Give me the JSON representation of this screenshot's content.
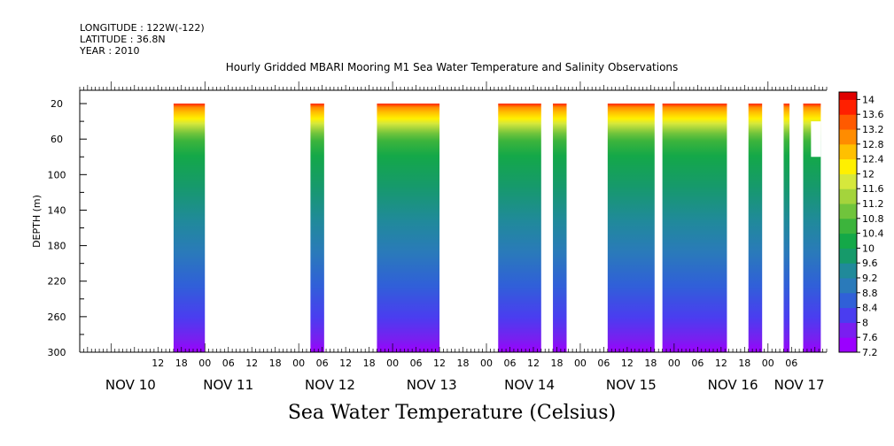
{
  "header": {
    "longitude": "LONGITUDE : 122W(-122)",
    "latitude": "LATITUDE : 36.8N",
    "year": "YEAR : 2010",
    "title": "Hourly Gridded MBARI Mooring M1 Sea Water Temperature and Salinity Observations"
  },
  "footer": {
    "variable_title": "Sea Water Temperature (Celsius)"
  },
  "chart_data": {
    "type": "heatmap",
    "title": "Hourly Gridded MBARI Mooring M1 Sea Water Temperature and Salinity Observations",
    "xlabel": "",
    "ylabel": "DEPTH (m)",
    "x_unit": "hours since 2010-11-10 00:00",
    "x_range_hours": [
      -8,
      183
    ],
    "y_range_m": [
      5,
      300
    ],
    "y_reversed": true,
    "y_ticks": [
      20,
      60,
      100,
      140,
      180,
      220,
      260,
      300
    ],
    "x_hour_ticks": [
      {
        "h": 12,
        "label": "12"
      },
      {
        "h": 18,
        "label": "18"
      },
      {
        "h": 24,
        "label": "00"
      },
      {
        "h": 30,
        "label": "06"
      },
      {
        "h": 36,
        "label": "12"
      },
      {
        "h": 42,
        "label": "18"
      },
      {
        "h": 48,
        "label": "00"
      },
      {
        "h": 54,
        "label": "06"
      },
      {
        "h": 60,
        "label": "12"
      },
      {
        "h": 66,
        "label": "18"
      },
      {
        "h": 72,
        "label": "00"
      },
      {
        "h": 78,
        "label": "06"
      },
      {
        "h": 84,
        "label": "12"
      },
      {
        "h": 90,
        "label": "18"
      },
      {
        "h": 96,
        "label": "00"
      },
      {
        "h": 102,
        "label": "06"
      },
      {
        "h": 108,
        "label": "12"
      },
      {
        "h": 114,
        "label": "18"
      },
      {
        "h": 120,
        "label": "00"
      },
      {
        "h": 126,
        "label": "06"
      },
      {
        "h": 132,
        "label": "12"
      },
      {
        "h": 138,
        "label": "18"
      },
      {
        "h": 144,
        "label": "00"
      },
      {
        "h": 150,
        "label": "06"
      },
      {
        "h": 156,
        "label": "12"
      },
      {
        "h": 162,
        "label": "18"
      },
      {
        "h": 168,
        "label": "00"
      },
      {
        "h": 174,
        "label": "06"
      }
    ],
    "date_labels": [
      {
        "h": 5,
        "label": "NOV 10"
      },
      {
        "h": 30,
        "label": "NOV 11"
      },
      {
        "h": 56,
        "label": "NOV 12"
      },
      {
        "h": 82,
        "label": "NOV 13"
      },
      {
        "h": 107,
        "label": "NOV 14"
      },
      {
        "h": 133,
        "label": "NOV 15"
      },
      {
        "h": 159,
        "label": "NOV 16"
      },
      {
        "h": 176,
        "label": "NOV 17"
      }
    ],
    "data_segments_hours": [
      [
        16,
        24
      ],
      [
        51,
        54.5
      ],
      [
        68,
        84
      ],
      [
        99,
        110
      ],
      [
        113,
        116.5
      ],
      [
        127,
        139
      ],
      [
        141,
        157.5
      ],
      [
        163,
        166.5
      ],
      [
        172,
        173.5
      ],
      [
        177,
        181.5
      ]
    ],
    "gap_patch": {
      "h": [
        179,
        181.5
      ],
      "depth_m": [
        40,
        80
      ]
    },
    "colorbar": {
      "labels": [
        "14",
        "13.6",
        "13.2",
        "12.8",
        "12.4",
        "12",
        "11.6",
        "11.2",
        "10.8",
        "10.4",
        "10",
        "9.6",
        "9.2",
        "8.8",
        "8.4",
        "8",
        "7.6",
        "7.2"
      ],
      "min": 7.2,
      "max": 14.2,
      "step": 0.2
    },
    "colors": {
      "c72": "#9b00ff",
      "c76": "#7a1ef0",
      "c80": "#4a3df0",
      "c84": "#3060d8",
      "c88": "#2a7aba",
      "c92": "#208a9a",
      "c96": "#169a6a",
      "c100": "#14a848",
      "c104": "#3cb43c",
      "c108": "#70c43c",
      "c112": "#a4d43c",
      "c116": "#d6e83c",
      "c120": "#fff000",
      "c124": "#ffc000",
      "c128": "#ff8c00",
      "c132": "#ff5a00",
      "c136": "#ff2000",
      "c140": "#e00000",
      "c142": "#a00000"
    }
  }
}
